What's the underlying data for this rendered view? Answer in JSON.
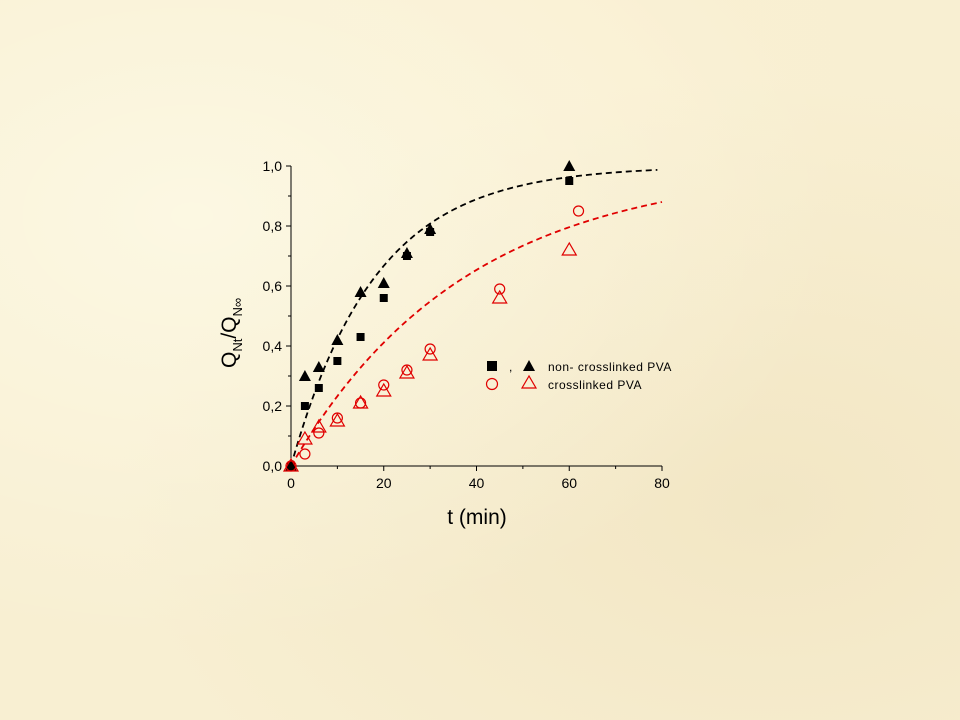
{
  "chart_data": {
    "type": "scatter",
    "xlabel": "t (min)",
    "ylabel_main": "Q",
    "ylabel_sub1": "Nt",
    "ylabel_sep": "/Q",
    "ylabel_sub2": "N∞",
    "xlim": [
      0,
      80
    ],
    "ylim": [
      0,
      1.0
    ],
    "xticks": [
      0,
      20,
      40,
      60,
      80
    ],
    "xtick_labels": [
      "0",
      "20",
      "40",
      "60",
      "80"
    ],
    "yticks": [
      0,
      0.2,
      0.4,
      0.6,
      0.8,
      1.0
    ],
    "ytick_labels": [
      "0,0",
      "0,2",
      "0,4",
      "0,6",
      "0,8",
      "1,0"
    ],
    "grid": false,
    "legend_position": "center-right",
    "series": [
      {
        "name": "non- crosslinked PVA",
        "marker": "square-filled",
        "color": "#000000",
        "x": [
          0,
          3,
          6,
          10,
          15,
          20,
          25,
          30,
          60
        ],
        "y": [
          0.0,
          0.2,
          0.26,
          0.35,
          0.43,
          0.56,
          0.7,
          0.78,
          0.95
        ]
      },
      {
        "name": "non- crosslinked PVA",
        "marker": "triangle-filled",
        "color": "#000000",
        "x": [
          0,
          3,
          6,
          10,
          15,
          20,
          25,
          30,
          60
        ],
        "y": [
          0.0,
          0.3,
          0.33,
          0.42,
          0.58,
          0.61,
          0.71,
          0.79,
          1.0
        ]
      },
      {
        "name": "crosslinked PVA",
        "marker": "circle-open",
        "color": "#e00000",
        "x": [
          0,
          3,
          6,
          10,
          15,
          20,
          25,
          30,
          45,
          62
        ],
        "y": [
          0.0,
          0.04,
          0.11,
          0.16,
          0.21,
          0.27,
          0.32,
          0.39,
          0.59,
          0.85
        ]
      },
      {
        "name": "crosslinked PVA",
        "marker": "triangle-open",
        "color": "#e00000",
        "x": [
          0,
          3,
          6,
          10,
          15,
          20,
          25,
          30,
          45,
          60
        ],
        "y": [
          0.0,
          0.09,
          0.13,
          0.15,
          0.21,
          0.25,
          0.31,
          0.37,
          0.56,
          0.72
        ]
      }
    ],
    "fit_curves": [
      {
        "color": "#000000",
        "k": 0.055,
        "x_max": 79
      },
      {
        "color": "#e00000",
        "k": 0.0265,
        "x_max": 80
      }
    ],
    "legend": {
      "row1_sep": ",",
      "row1_label": "non- crosslinked PVA",
      "row2_label": "crosslinked PVA"
    }
  }
}
